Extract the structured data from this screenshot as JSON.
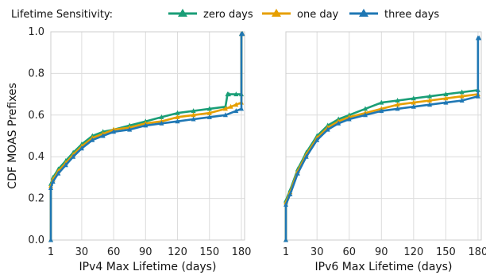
{
  "chart_data": {
    "type": "line",
    "legend": {
      "title": "Lifetime Sensitivity:",
      "placement": "top"
    },
    "ylabel": "CDF MOAS Prefixes",
    "ylim": [
      0.0,
      1.0
    ],
    "yticks": [
      "0.0",
      "0.2",
      "0.4",
      "0.6",
      "0.8",
      "1.0"
    ],
    "grid": true,
    "series_styles": [
      {
        "name": "zero days",
        "color": "#1a9e77"
      },
      {
        "name": "one day",
        "color": "#e69f00"
      },
      {
        "name": "three days",
        "color": "#1f77b4"
      }
    ],
    "panels": [
      {
        "xlabel": "IPv4 Max Lifetime (days)",
        "xlim": [
          1,
          183
        ],
        "xticks": [
          "1",
          "30",
          "60",
          "90",
          "120",
          "150",
          "180"
        ],
        "series": [
          {
            "name": "zero days",
            "x": [
              1,
              1,
              3,
              8,
              15,
              22,
              30,
              40,
              50,
              60,
              75,
              90,
              105,
              120,
              135,
              150,
              165,
              167,
              168,
              175,
              180,
              180,
              181
            ],
            "y": [
              0.0,
              0.27,
              0.3,
              0.34,
              0.38,
              0.42,
              0.46,
              0.5,
              0.52,
              0.53,
              0.55,
              0.57,
              0.59,
              0.61,
              0.62,
              0.63,
              0.64,
              0.7,
              0.7,
              0.7,
              0.7,
              0.99,
              0.99
            ]
          },
          {
            "name": "one day",
            "x": [
              1,
              1,
              3,
              8,
              15,
              22,
              30,
              40,
              50,
              60,
              75,
              90,
              105,
              120,
              135,
              150,
              165,
              170,
              175,
              180,
              180,
              181
            ],
            "y": [
              0.0,
              0.26,
              0.29,
              0.33,
              0.37,
              0.41,
              0.45,
              0.49,
              0.51,
              0.53,
              0.54,
              0.56,
              0.57,
              0.59,
              0.6,
              0.61,
              0.63,
              0.64,
              0.65,
              0.66,
              0.99,
              0.99
            ]
          },
          {
            "name": "three days",
            "x": [
              1,
              1,
              3,
              8,
              15,
              22,
              30,
              40,
              50,
              60,
              75,
              90,
              105,
              120,
              135,
              150,
              165,
              175,
              180,
              180,
              181
            ],
            "y": [
              0.0,
              0.25,
              0.28,
              0.32,
              0.36,
              0.4,
              0.44,
              0.48,
              0.5,
              0.52,
              0.53,
              0.55,
              0.56,
              0.57,
              0.58,
              0.59,
              0.6,
              0.62,
              0.63,
              0.99,
              0.99
            ]
          }
        ]
      },
      {
        "xlabel": "IPv6 Max Lifetime (days)",
        "xlim": [
          1,
          183
        ],
        "xticks": [
          "1",
          "30",
          "60",
          "90",
          "120",
          "150",
          "180"
        ],
        "series": [
          {
            "name": "zero days",
            "x": [
              1,
              1,
              5,
              12,
              20,
              30,
              40,
              50,
              60,
              75,
              90,
              105,
              120,
              135,
              150,
              165,
              180
            ],
            "y": [
              0.0,
              0.19,
              0.24,
              0.34,
              0.42,
              0.5,
              0.55,
              0.58,
              0.6,
              0.63,
              0.66,
              0.67,
              0.68,
              0.69,
              0.7,
              0.71,
              0.72
            ]
          },
          {
            "name": "one day",
            "x": [
              1,
              1,
              5,
              12,
              20,
              30,
              40,
              50,
              60,
              75,
              90,
              105,
              120,
              135,
              150,
              165,
              180
            ],
            "y": [
              0.0,
              0.18,
              0.23,
              0.33,
              0.41,
              0.49,
              0.54,
              0.57,
              0.59,
              0.61,
              0.63,
              0.65,
              0.66,
              0.67,
              0.68,
              0.69,
              0.7
            ]
          },
          {
            "name": "three days",
            "x": [
              1,
              1,
              5,
              12,
              20,
              30,
              40,
              50,
              60,
              75,
              90,
              105,
              120,
              135,
              150,
              165,
              180,
              180,
              181
            ],
            "y": [
              0.0,
              0.17,
              0.22,
              0.32,
              0.4,
              0.48,
              0.53,
              0.56,
              0.58,
              0.6,
              0.62,
              0.63,
              0.64,
              0.65,
              0.66,
              0.67,
              0.69,
              0.97,
              0.97
            ]
          }
        ]
      }
    ]
  }
}
